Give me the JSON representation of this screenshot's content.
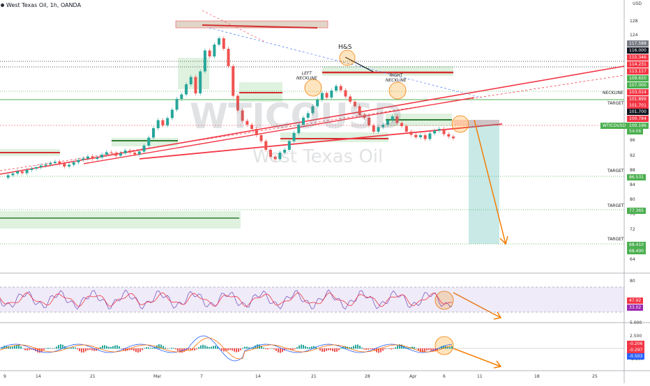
{
  "header": {
    "title": "West Texas Oil, 1h, OANDA",
    "currency": "USD"
  },
  "watermark": {
    "symbol": "WTICOUSD",
    "name": "West Texas Oil"
  },
  "chart_data": [
    {
      "type": "line",
      "title": "West Texas Oil, 1h, OANDA",
      "ylim": [
        62,
        138
      ],
      "y_ticks": [
        128.0,
        124.0,
        96.0,
        92.0,
        88.0,
        84.0,
        80.0,
        76.0,
        72.0,
        64.0
      ],
      "price_labels": [
        {
          "value": "117.588",
          "color": "#787b86"
        },
        {
          "value": "116.000",
          "color": "#131722"
        },
        {
          "value": "115.346",
          "color": "#f23645"
        },
        {
          "value": "114.231",
          "color": "#f23645"
        },
        {
          "value": "113.117",
          "color": "#f23645"
        },
        {
          "value": "109.650",
          "color": "#4caf50"
        },
        {
          "value": "107.000",
          "color": "#4caf50"
        },
        {
          "value": "103.014",
          "color": "#f23645"
        },
        {
          "value": "101.899",
          "color": "#f23645"
        },
        {
          "value": "101.701",
          "color": "#f23645"
        },
        {
          "value": "101.700",
          "color": "#131722"
        },
        {
          "value": "100.784",
          "color": "#f23645"
        },
        {
          "value": "100.196",
          "color": "#4caf50"
        },
        {
          "value": "86.531",
          "color": "#4caf50"
        },
        {
          "value": "77.365",
          "color": "#4caf50"
        },
        {
          "value": "68.410",
          "color": "#4caf50"
        },
        {
          "value": "68.400",
          "color": "#4caf50"
        }
      ],
      "symbol_badge": {
        "text": "WTICOUSD",
        "countdown": "54:06"
      },
      "x_ticks": [
        "9",
        "14",
        "21",
        "Mar",
        "7",
        "14",
        "21",
        "28",
        "Apr",
        "6",
        "11",
        "18",
        "25"
      ],
      "annotations": [
        {
          "text": "H&S"
        },
        {
          "text": "LEFT\nNECKLINE"
        },
        {
          "text": "RIGHT\nNECKLINE"
        },
        {
          "text": "NECKLINE"
        },
        {
          "text": "TARGET"
        },
        {
          "text": "TARGET"
        },
        {
          "text": "TARGET"
        },
        {
          "text": "TARGET"
        }
      ],
      "series": [
        {
          "values": [
            89.0,
            89.7,
            90.2,
            90.8,
            90.3,
            91.2,
            91.6,
            92.0,
            92.5,
            92.8,
            93.2,
            93.6,
            93.0,
            92.2,
            92.7,
            93.4,
            94.1,
            94.5,
            95.1,
            94.4,
            94.8,
            95.6,
            96.3,
            96.1,
            95.3,
            96.0,
            96.8,
            96.2,
            95.7,
            96.5,
            98.2,
            100.5,
            103.2,
            105.5,
            104.0,
            106.1,
            108.5,
            111.6,
            112.9,
            115.8,
            117.9,
            113.2,
            119.5,
            125.5,
            123.8,
            127.2,
            129.0,
            126.0,
            121.0,
            112.5,
            108.3,
            105.3,
            104.2,
            103.0,
            101.2,
            99.5,
            97.0,
            95.0,
            94.3,
            96.2,
            97.0,
            99.5,
            101.8,
            104.2,
            106.2,
            107.5,
            109.5,
            111.4,
            113.3,
            112.0,
            114.0,
            115.3,
            114.1,
            112.3,
            110.8,
            109.5,
            107.0,
            106.2,
            104.0,
            102.2,
            103.5,
            104.2,
            105.5,
            106.6,
            104.7,
            103.8,
            102.2,
            101.3,
            100.6,
            101.2,
            100.1,
            101.7,
            102.5,
            103.0,
            101.5,
            100.8,
            100.3
          ]
        }
      ]
    },
    {
      "type": "line",
      "title": "RSI",
      "ylim": [
        20,
        90
      ],
      "y_ticks": [
        80.0
      ],
      "price_labels": [
        {
          "value": "47.92",
          "color": "#f23645"
        },
        {
          "value": "33.02",
          "color": "#9c27b0"
        }
      ]
    },
    {
      "type": "bar",
      "title": "MACD",
      "ylim": [
        -5,
        5
      ],
      "y_ticks": [
        "5.000",
        "2.500",
        "-2.500"
      ],
      "price_labels": [
        {
          "value": "-0.206",
          "color": "#f23645"
        },
        {
          "value": "-0.297",
          "color": "#f23645"
        },
        {
          "value": "-0.503",
          "color": "#2962ff"
        }
      ]
    }
  ]
}
